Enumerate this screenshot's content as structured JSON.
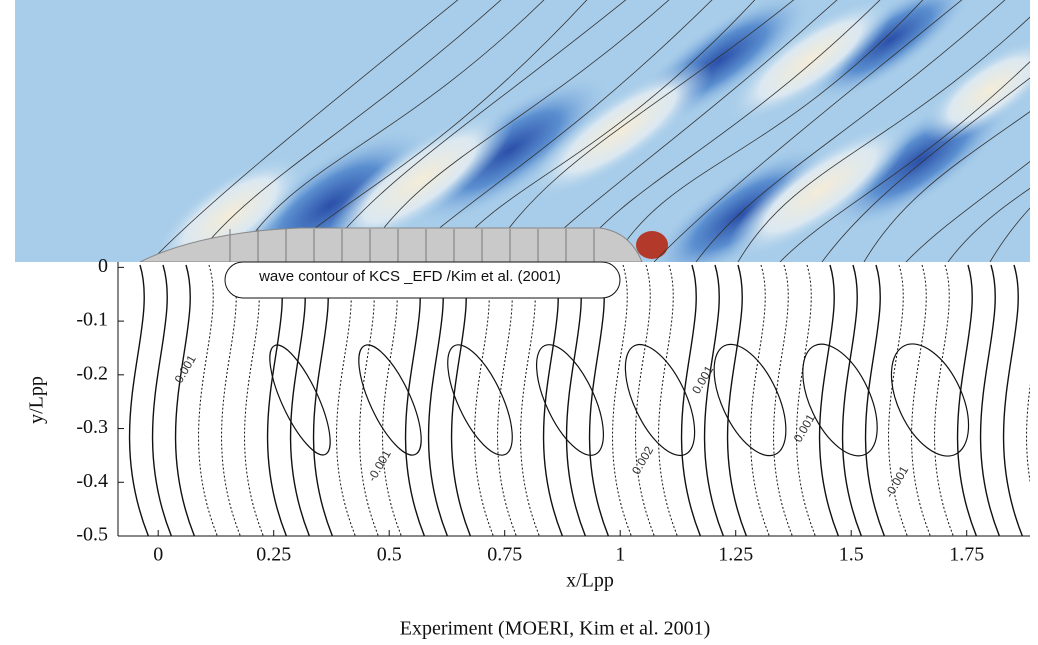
{
  "chart_data": {
    "type": "contour",
    "xlabel": "x/Lpp",
    "ylabel": "y/Lpp",
    "caption": "Experiment (MOERI, Kim et al. 2001)",
    "annotation": "wave contour of KCS _EFD /Kim et al. (2001)",
    "xlim": [
      -0.087,
      1.887
    ],
    "ylim": [
      -0.5,
      0.01
    ],
    "xticks": [
      0,
      0.25,
      0.5,
      0.75,
      1,
      1.25,
      1.5,
      1.75
    ],
    "yticks": [
      0,
      -0.1,
      -0.2,
      -0.3,
      -0.4,
      -0.5
    ],
    "contour_labels": [
      {
        "text": "0.001",
        "x": 0.06,
        "y": -0.19
      },
      {
        "text": "-0.001",
        "x": 0.48,
        "y": -0.37
      },
      {
        "text": "0.002",
        "x": 1.05,
        "y": -0.36
      },
      {
        "text": "0.001",
        "x": 1.4,
        "y": -0.3
      },
      {
        "text": "-0.001",
        "x": 1.6,
        "y": -0.4
      },
      {
        "text": "0.001",
        "x": 1.18,
        "y": -0.21
      }
    ]
  }
}
